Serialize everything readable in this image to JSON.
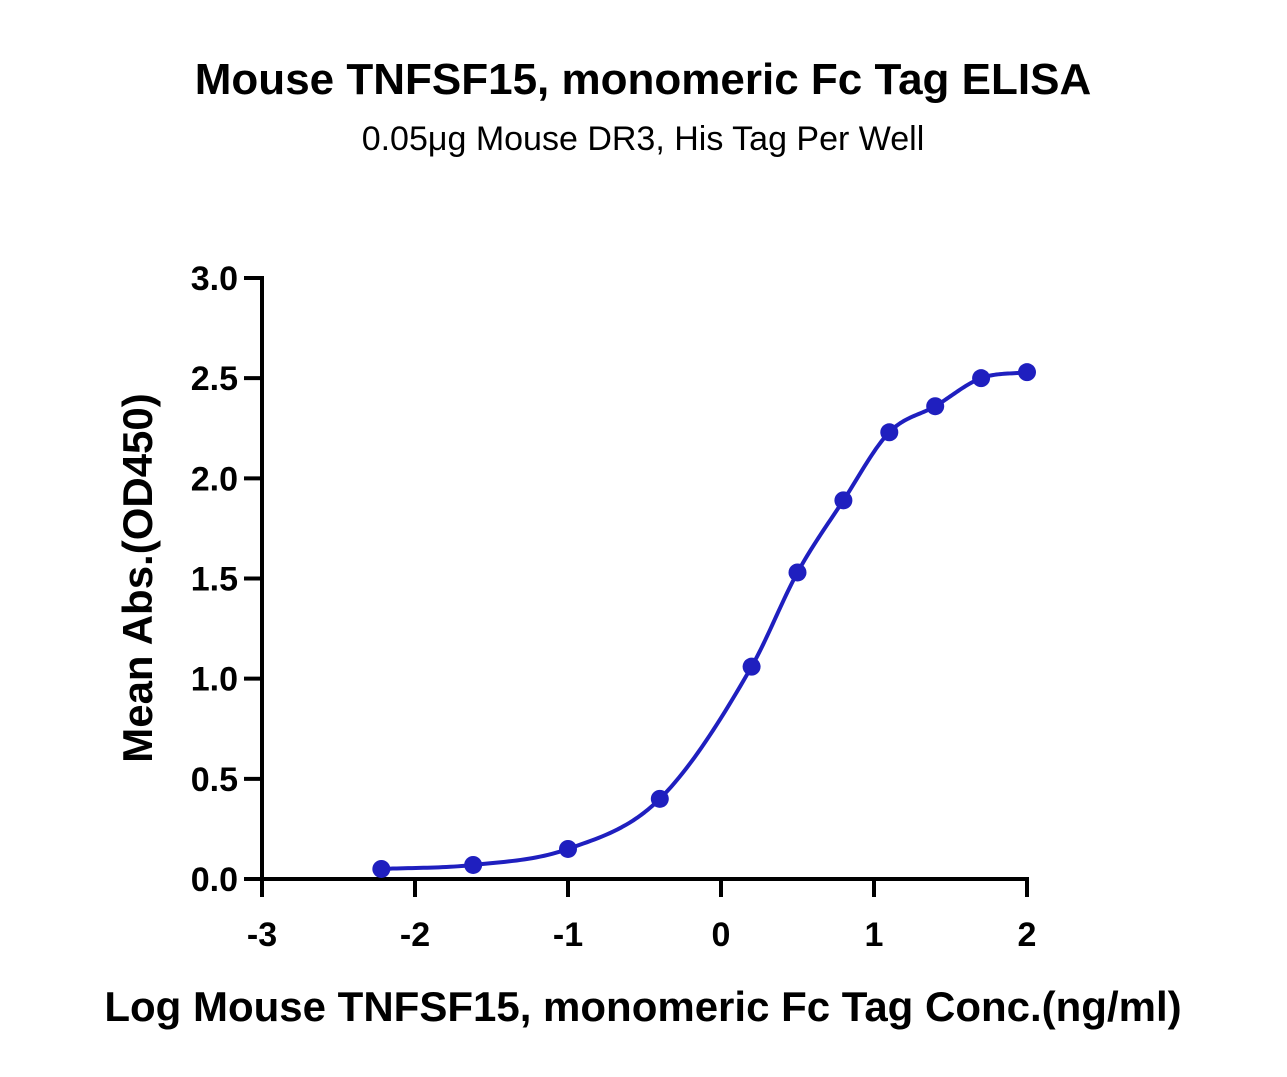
{
  "chart_data": {
    "type": "scatter",
    "title": "Mouse TNFSF15, monomeric Fc Tag ELISA",
    "subtitle": "0.05μg Mouse DR3, His Tag Per Well",
    "xlabel": "Log Mouse TNFSF15, monomeric Fc Tag Conc.(ng/ml)",
    "ylabel": "Mean Abs.(OD450)",
    "xlim": [
      -3,
      2
    ],
    "ylim": [
      0,
      3
    ],
    "x_ticks": [
      "-3",
      "-2",
      "-1",
      "0",
      "1",
      "2"
    ],
    "y_ticks": [
      "0.0",
      "0.5",
      "1.0",
      "1.5",
      "2.0",
      "2.5",
      "3.0"
    ],
    "grid": false,
    "color": "#1f1fbf",
    "series": [
      {
        "x": [
          -2.22,
          -1.62,
          -1.0,
          -0.4,
          0.2,
          0.5,
          0.8,
          1.1,
          1.4,
          1.7,
          2.0
        ],
        "y": [
          0.05,
          0.07,
          0.15,
          0.4,
          1.06,
          1.53,
          1.89,
          2.23,
          2.36,
          2.5,
          2.53
        ],
        "fit": "sigmoidal"
      }
    ]
  }
}
